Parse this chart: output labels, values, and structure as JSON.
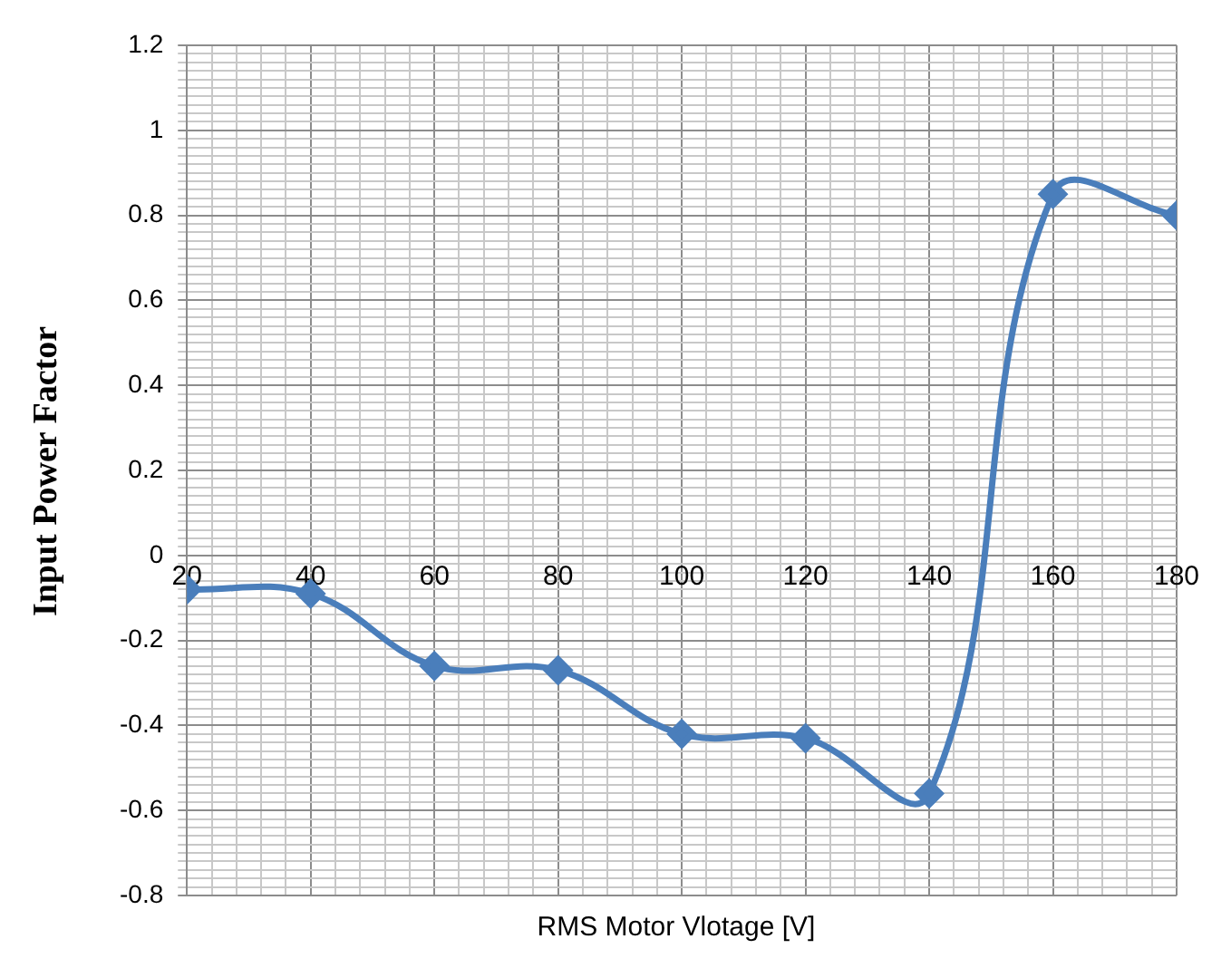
{
  "chart_data": {
    "type": "line",
    "xlabel": "RMS Motor Vlotage [V]",
    "ylabel": "Input Power Factor",
    "x": [
      20,
      40,
      60,
      80,
      100,
      120,
      140,
      160,
      180
    ],
    "series": [
      {
        "color": "#4a7ebb",
        "values": [
          -0.08,
          -0.09,
          -0.26,
          -0.27,
          -0.42,
          -0.43,
          -0.56,
          0.85,
          0.8
        ]
      }
    ],
    "xlim": [
      20,
      180
    ],
    "xticks": [
      20,
      40,
      60,
      80,
      100,
      120,
      140,
      160,
      180
    ],
    "ylim": [
      -0.8,
      1.2
    ],
    "yticks": [
      -0.8,
      -0.6,
      -0.4,
      -0.2,
      0,
      0.2,
      0.4,
      0.6,
      0.8,
      1,
      1.2
    ],
    "grid": true,
    "marker": "diamond",
    "line_style": "solid",
    "legend": false
  }
}
